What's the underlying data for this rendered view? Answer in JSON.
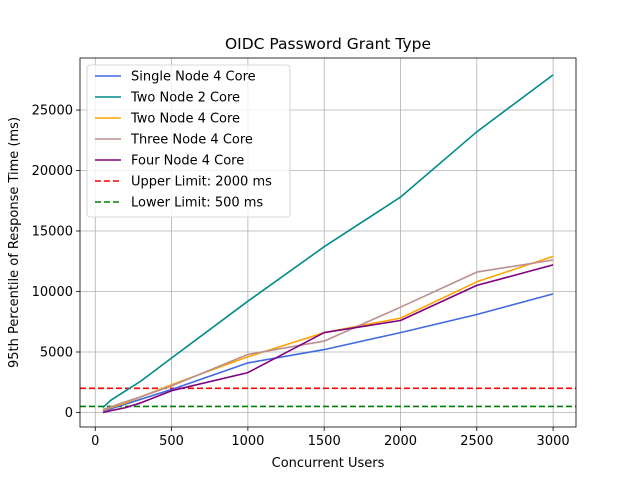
{
  "chart_data": {
    "type": "line",
    "title": "OIDC Password Grant Type",
    "xlabel": "Concurrent Users",
    "ylabel": "95th Percentile of Response Time (ms)",
    "xlim": [
      -100,
      3150
    ],
    "ylim": [
      -1200,
      29300
    ],
    "xticks": [
      0,
      500,
      1000,
      1500,
      2000,
      2500,
      3000
    ],
    "yticks": [
      0,
      5000,
      10000,
      15000,
      20000,
      25000
    ],
    "grid": true,
    "legend_position": "upper-left",
    "series": [
      {
        "name": "Single Node 4 Core",
        "color": "#4169e1",
        "x": [
          50,
          100,
          200,
          300,
          500,
          1000,
          1500,
          2000,
          2500,
          3000
        ],
        "y": [
          150,
          300,
          700,
          1100,
          1900,
          4100,
          5200,
          6600,
          8100,
          9800
        ]
      },
      {
        "name": "Two Node 2 Core",
        "color": "#008b8b",
        "x": [
          50,
          100,
          200,
          300,
          500,
          1000,
          1500,
          2000,
          2500,
          3000
        ],
        "y": [
          400,
          1000,
          1800,
          2600,
          4500,
          9200,
          13700,
          17800,
          23200,
          27900
        ]
      },
      {
        "name": "Two Node 4 Core",
        "color": "#ffa500",
        "x": [
          50,
          100,
          200,
          300,
          500,
          1000,
          1500,
          2000,
          2500,
          3000
        ],
        "y": [
          200,
          400,
          800,
          1300,
          2300,
          4600,
          6600,
          7800,
          10800,
          12900
        ]
      },
      {
        "name": "Three Node 4 Core",
        "color": "#bc8f8f",
        "x": [
          50,
          100,
          200,
          300,
          500,
          1000,
          1500,
          2000,
          2500,
          3000
        ],
        "y": [
          250,
          450,
          900,
          1300,
          2200,
          4800,
          5900,
          8700,
          11600,
          12600
        ]
      },
      {
        "name": "Four Node 4 Core",
        "color": "#800080",
        "x": [
          50,
          100,
          200,
          300,
          500,
          1000,
          1500,
          2000,
          2500,
          3000
        ],
        "y": [
          0,
          150,
          400,
          800,
          1800,
          3300,
          6600,
          7600,
          10500,
          12200
        ]
      }
    ],
    "reference_lines": [
      {
        "name": "Upper Limit: 2000 ms",
        "y": 2000,
        "color": "#ff0000",
        "style": "dashed"
      },
      {
        "name": "Lower Limit: 500 ms",
        "y": 500,
        "color": "#008000",
        "style": "dashed"
      }
    ]
  }
}
